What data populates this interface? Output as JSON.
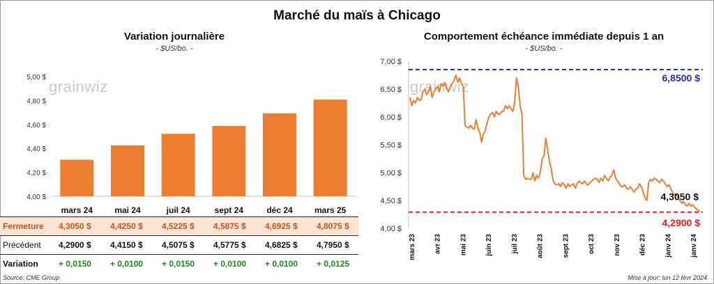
{
  "title": "Marché du maïs à Chicago",
  "left": {
    "title": "Variation journalière",
    "subtitle": "- $US/bo. -",
    "watermark": "grainwiz"
  },
  "right": {
    "title": "Comportement échéance immédiate depuis 1 an",
    "subtitle": "- $US/bo. -",
    "watermark": "grainwiz",
    "max_label": "6,8500 $",
    "min_label": "4,2900 $",
    "last_label": "4,3050 $"
  },
  "table": {
    "rows": [
      {
        "label": "Fermeture",
        "values": [
          "4,3050 $",
          "4,4250 $",
          "4,5225 $",
          "4,5875 $",
          "4,6925 $",
          "4,8075 $"
        ]
      },
      {
        "label": "Précédent",
        "values": [
          "4,2900 $",
          "4,4150 $",
          "4,5075 $",
          "4,5775 $",
          "4,6825 $",
          "4,7950 $"
        ]
      },
      {
        "label": "Variation",
        "values": [
          "+ 0,0150",
          "+ 0,0100",
          "+ 0,0150",
          "+ 0,0100",
          "+ 0,0100",
          "+ 0,0125"
        ]
      }
    ]
  },
  "footer": {
    "source": "Source: CME Group",
    "updated": "Mise à jour: lun 12 févr 2024"
  },
  "colors": {
    "bar": "#ed7d31",
    "line": "#ed7d31",
    "max_line": "#2b2bbf",
    "min_line": "#e02020",
    "variation": "#1a8a1a"
  },
  "chart_data": [
    {
      "type": "bar",
      "title": "Variation journalière",
      "ylabel": "$US/bo.",
      "categories": [
        "mars 24",
        "mai 24",
        "juil 24",
        "sept 24",
        "déc 24",
        "mars 25"
      ],
      "values": [
        4.305,
        4.425,
        4.5225,
        4.5875,
        4.6925,
        4.8075
      ],
      "ylim": [
        4.0,
        5.0
      ],
      "yticks": [
        "4,00 $",
        "4,20 $",
        "4,40 $",
        "4,60 $",
        "4,80 $",
        "5,00 $"
      ],
      "grid": false
    },
    {
      "type": "line",
      "title": "Comportement échéance immédiate depuis 1 an",
      "ylabel": "$US/bo.",
      "ylim": [
        4.0,
        7.0
      ],
      "yticks": [
        "4,00 $",
        "4,50 $",
        "5,00 $",
        "5,50 $",
        "6,00 $",
        "6,50 $",
        "7,00 $"
      ],
      "xticks": [
        "mars 23",
        "avr 23",
        "mai 23",
        "juin 23",
        "juil 23",
        "août 23",
        "sept 23",
        "oct 23",
        "nov 23",
        "déc 23",
        "janv 24",
        "janv 24"
      ],
      "reference_lines": [
        {
          "label": "6,8500 $",
          "value": 6.85,
          "style": "dashed",
          "color": "#2b2bbf"
        },
        {
          "label": "4,2900 $",
          "value": 4.29,
          "style": "dashed",
          "color": "#e02020"
        }
      ],
      "series": [
        {
          "values": [
            6.35,
            6.2,
            6.3,
            6.25,
            6.35,
            6.3,
            6.3,
            6.45,
            6.5,
            6.4,
            6.45,
            6.55,
            6.35,
            6.45,
            6.5,
            6.55,
            6.45,
            6.6,
            6.55,
            6.62,
            6.5,
            6.45,
            6.55,
            6.6,
            6.65,
            6.75,
            6.62,
            6.7,
            6.6,
            6.55,
            5.85,
            5.82,
            5.8,
            5.85,
            5.8,
            5.78,
            5.95,
            5.8,
            5.72,
            5.55,
            5.7,
            5.75,
            5.9,
            6.0,
            6.05,
            6.08,
            6.0,
            6.1,
            6.05,
            6.05,
            6.1,
            6.1,
            6.2,
            6.15,
            6.2,
            6.15,
            6.1,
            6.25,
            6.7,
            6.55,
            6.2,
            6.05,
            4.95,
            4.88,
            4.9,
            4.88,
            4.88,
            5.0,
            4.85,
            4.95,
            4.9,
            5.0,
            5.25,
            5.3,
            5.62,
            5.4,
            5.2,
            5.05,
            4.85,
            4.8,
            4.78,
            4.8,
            4.75,
            4.82,
            4.78,
            4.72,
            4.8,
            4.75,
            4.78,
            4.8,
            4.72,
            4.8,
            4.85,
            4.82,
            4.8,
            4.85,
            4.8,
            4.78,
            4.82,
            4.85,
            4.88,
            4.9,
            4.88,
            4.82,
            4.9,
            4.85,
            4.95,
            4.9,
            4.85,
            4.92,
            4.95,
            5.05,
            4.9,
            4.85,
            4.8,
            4.75,
            4.75,
            4.78,
            4.72,
            4.7,
            4.75,
            4.7,
            4.65,
            4.7,
            4.72,
            4.8,
            4.75,
            4.65,
            4.55,
            4.5,
            4.82,
            4.88,
            4.85,
            4.9,
            4.88,
            4.85,
            4.82,
            4.88,
            4.85,
            4.8,
            4.75,
            4.78,
            4.72,
            4.65,
            4.6,
            4.62,
            4.55,
            4.5,
            4.45,
            4.48,
            4.42,
            4.4,
            4.45,
            4.4,
            4.42,
            4.38,
            4.35,
            4.32,
            4.305
          ]
        }
      ],
      "last_value_label": "4,3050 $"
    }
  ]
}
